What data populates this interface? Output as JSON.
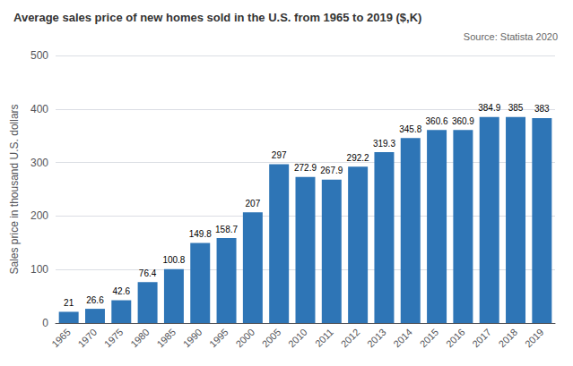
{
  "chart_data": {
    "type": "bar",
    "title": "Average sales price of new homes sold in the U.S. from 1965 to 2019 ($,K)",
    "annotations": [
      "Source: Statista 2020"
    ],
    "ylabel": "Sales price in thousand U.S. dollars",
    "categories": [
      "1965",
      "1970",
      "1975",
      "1980",
      "1985",
      "1990",
      "1995",
      "2000",
      "2005",
      "2010",
      "2011",
      "2012",
      "2013",
      "2014",
      "2015",
      "2016",
      "2017",
      "2018",
      "2019"
    ],
    "values": [
      21,
      26.6,
      42.6,
      76.4,
      100.8,
      149.8,
      158.7,
      207,
      297,
      272.9,
      267.9,
      292.2,
      319.3,
      345.8,
      360.6,
      360.9,
      384.9,
      385,
      383
    ],
    "color": "#2e75b6",
    "ylim": [
      0,
      500
    ],
    "yticks": [
      0,
      100,
      200,
      300,
      400,
      500
    ],
    "grid": true,
    "data_labels": true
  }
}
